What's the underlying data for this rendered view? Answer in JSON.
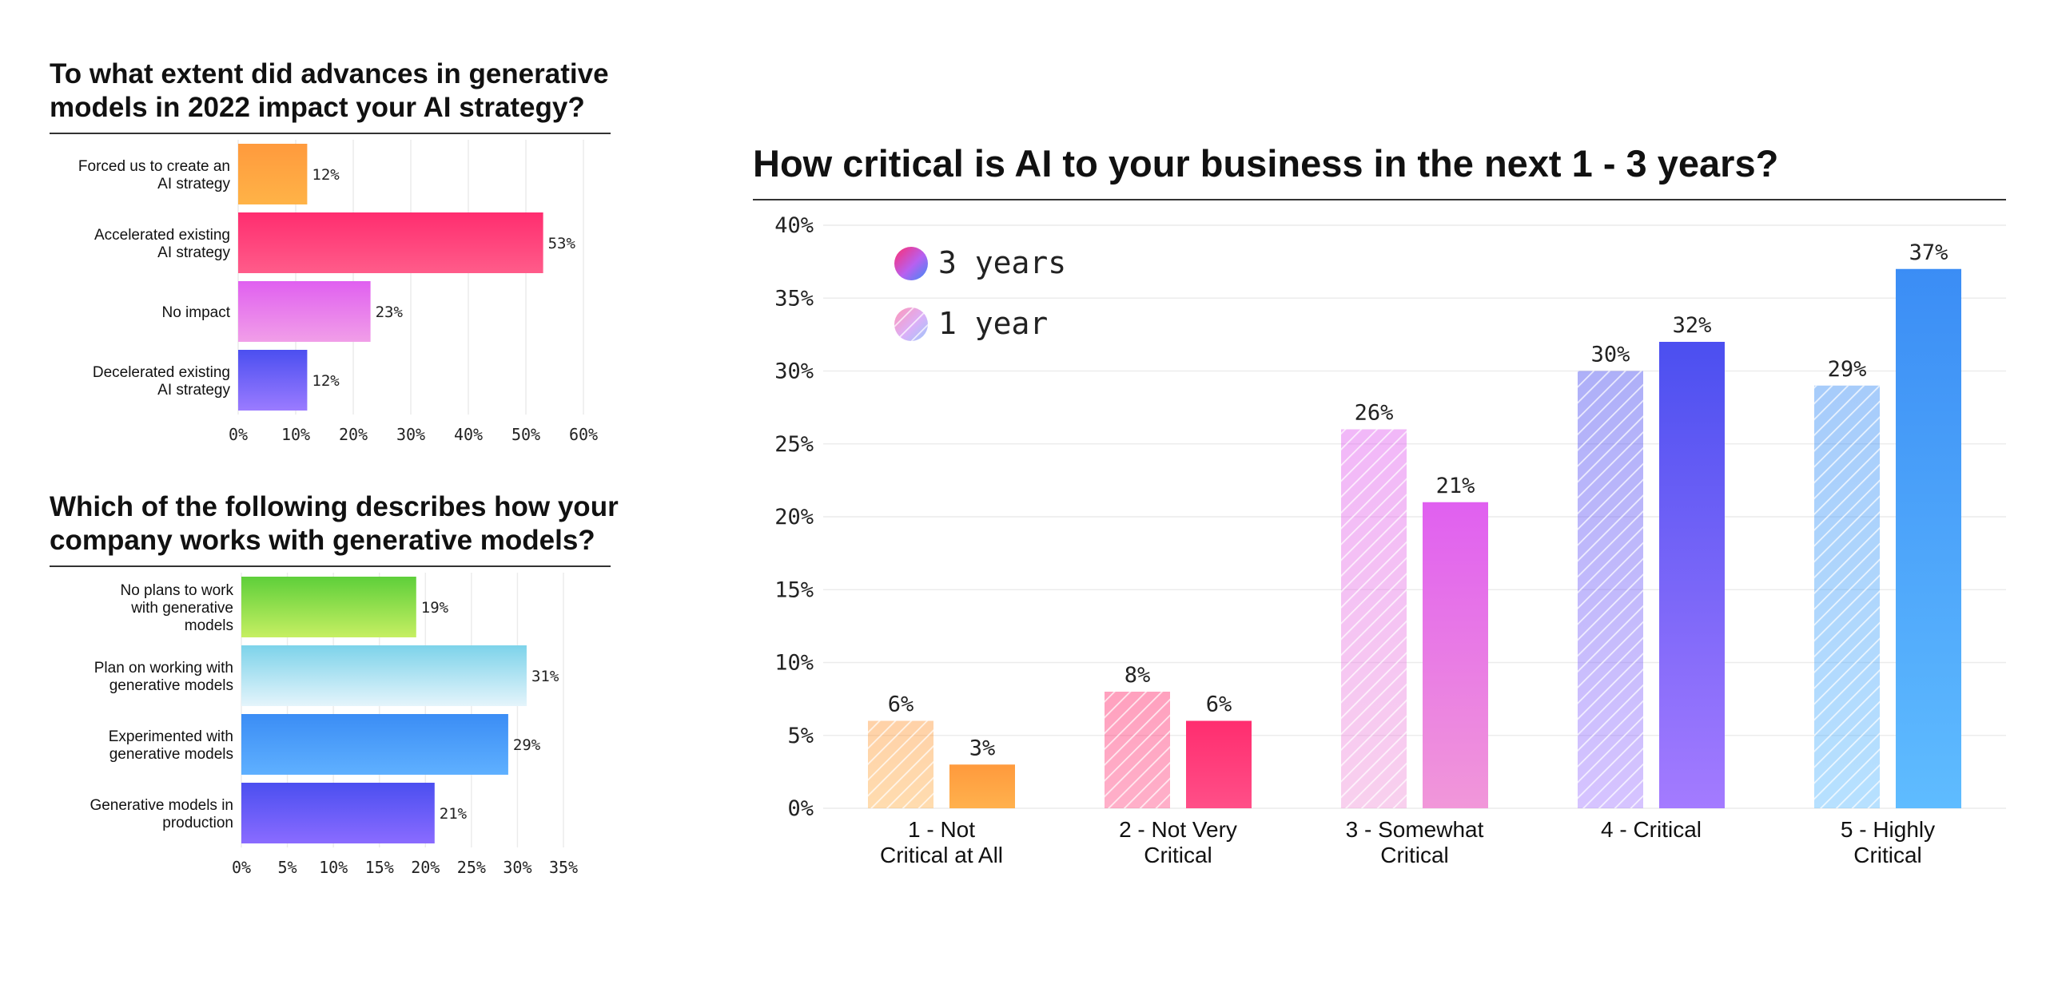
{
  "chart_data": [
    {
      "type": "bar",
      "orientation": "horizontal",
      "title": "To what extent did advances in generative models in 2022 impact your AI strategy?",
      "categories": [
        "Forced us to create an AI strategy",
        "Accelerated existing AI strategy",
        "No impact",
        "Decelerated existing AI strategy"
      ],
      "values": [
        12,
        53,
        23,
        12
      ],
      "value_labels": [
        "12%",
        "53%",
        "23%",
        "12%"
      ],
      "xlim": [
        0,
        60
      ],
      "ticks": [
        "0%",
        "10%",
        "20%",
        "30%",
        "40%",
        "50%",
        "60%"
      ],
      "grid": true,
      "colors": [
        [
          "#ff9a3d",
          "#ffb347"
        ],
        [
          "#ff2d6f",
          "#ff5c8a"
        ],
        [
          "#e060f0",
          "#f19ee8"
        ],
        [
          "#4b4ff0",
          "#9b7bff"
        ]
      ]
    },
    {
      "type": "bar",
      "orientation": "horizontal",
      "title": "Which of the following describes how your company works with generative models?",
      "categories": [
        "No plans to work with generative models",
        "Plan on working with generative models",
        "Experimented with generative models",
        "Generative models in production"
      ],
      "values": [
        19,
        31,
        29,
        21
      ],
      "value_labels": [
        "19%",
        "31%",
        "29%",
        "21%"
      ],
      "xlim": [
        0,
        35
      ],
      "ticks": [
        "0%",
        "5%",
        "10%",
        "15%",
        "20%",
        "25%",
        "30%",
        "35%"
      ],
      "grid": true,
      "colors": [
        [
          "#5ecf3a",
          "#c6ef62"
        ],
        [
          "#7dd3ea",
          "#e4f4fb"
        ],
        [
          "#3b8df5",
          "#5fb0ff"
        ],
        [
          "#4b4ff0",
          "#8a6bff"
        ]
      ]
    },
    {
      "type": "bar",
      "title": "How critical is AI to your business in the next 1 - 3 years?",
      "categories": [
        "1 - Not Critical at All",
        "2 - Not Very Critical",
        "3 - Somewhat Critical",
        "4 - Critical",
        "5 - Highly Critical"
      ],
      "series": [
        {
          "name": "1 year",
          "values": [
            6,
            8,
            26,
            30,
            29
          ],
          "value_labels": [
            "6%",
            "8%",
            "26%",
            "30%",
            "29%"
          ],
          "pattern": "hatched"
        },
        {
          "name": "3 years",
          "values": [
            3,
            6,
            21,
            32,
            37
          ],
          "value_labels": [
            "3%",
            "6%",
            "21%",
            "32%",
            "37%"
          ],
          "pattern": "solid"
        }
      ],
      "legend_order": [
        "3 years",
        "1 year"
      ],
      "legend_position": "top-left",
      "ylim": [
        0,
        40
      ],
      "ticks": [
        "0%",
        "5%",
        "10%",
        "15%",
        "20%",
        "25%",
        "30%",
        "35%",
        "40%"
      ],
      "grid": true,
      "category_colors": [
        [
          "#ff9a3d",
          "#ffb14d"
        ],
        [
          "#ff2d6f",
          "#ff4f88"
        ],
        [
          "#e060f0",
          "#f197d9"
        ],
        [
          "#4b4ff0",
          "#a47bff"
        ],
        [
          "#3b8df5",
          "#5fbcff"
        ]
      ]
    }
  ]
}
